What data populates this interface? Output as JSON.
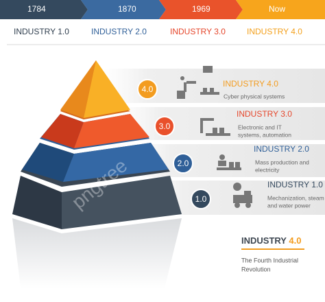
{
  "timeline": [
    {
      "year": "1784",
      "label": "INDUSTRY 1.0"
    },
    {
      "year": "1870",
      "label": "INDUSTRY 2.0"
    },
    {
      "year": "1969",
      "label": "INDUSTRY 3.0"
    },
    {
      "year": "Now",
      "label": "INDUSTRY 4.0"
    }
  ],
  "levels": [
    {
      "badge": "4.0",
      "title": "INDUSTRY 4.0",
      "description": [
        "Cyber physical systems"
      ]
    },
    {
      "badge": "3.0",
      "title": "INDUSTRY 3.0",
      "description": [
        "Electronic and IT",
        "systems, automation"
      ]
    },
    {
      "badge": "2.0",
      "title": "INDUSTRY 2.0",
      "description": [
        "Mass production and",
        "electricity"
      ]
    },
    {
      "badge": "1.0",
      "title": "INDUSTRY 1.0",
      "description": [
        "Mechanization, steam",
        "and water power"
      ]
    }
  ],
  "footer": {
    "title": "INDUSTRY",
    "title_version": "4.0",
    "subtitle": [
      "The Fourth Industrial",
      "Revolution"
    ]
  },
  "watermark": "pngtree"
}
